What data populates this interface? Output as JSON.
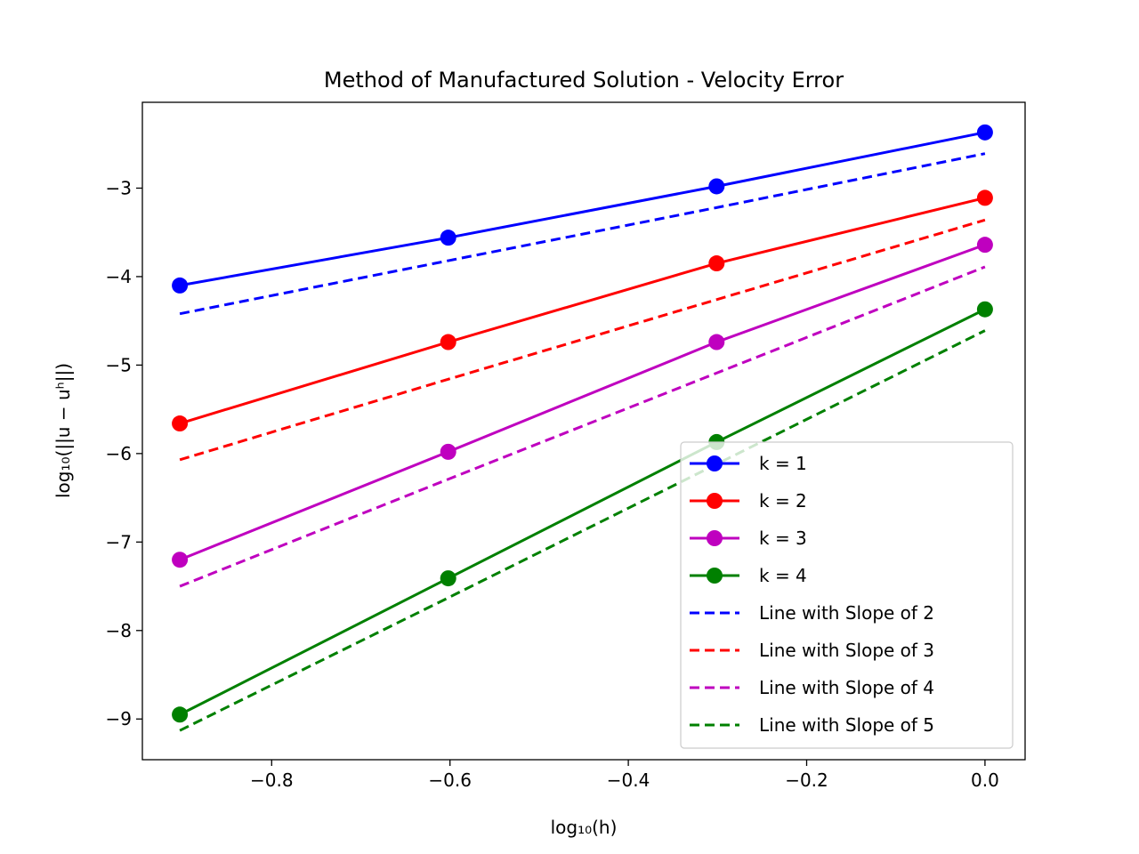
{
  "chart_data": {
    "type": "line",
    "title": "Method of Manufactured Solution - Velocity Error",
    "xlabel": "log₁₀(h)",
    "ylabel": "log₁₀(||u − uʰ||)",
    "xlim": [
      -0.945,
      0.045
    ],
    "ylim": [
      -9.46,
      -2.03
    ],
    "xticks": [
      -0.8,
      -0.6,
      -0.4,
      -0.2,
      0.0
    ],
    "xtick_labels": [
      "−0.8",
      "−0.6",
      "−0.4",
      "−0.2",
      "0.0"
    ],
    "yticks": [
      -9,
      -8,
      -7,
      -6,
      -5,
      -4,
      -3
    ],
    "ytick_labels": [
      "−9",
      "−8",
      "−7",
      "−6",
      "−5",
      "−4",
      "−3"
    ],
    "grid": false,
    "legend_position": "lower-right",
    "x": [
      -0.903,
      -0.602,
      -0.301,
      0.0
    ],
    "series": [
      {
        "name": "k = 1",
        "style": "solid-marker",
        "color": "#0000ff",
        "values": [
          -4.1,
          -3.56,
          -2.98,
          -2.37
        ]
      },
      {
        "name": "k = 2",
        "style": "solid-marker",
        "color": "#ff0000",
        "values": [
          -5.66,
          -4.74,
          -3.85,
          -3.11
        ]
      },
      {
        "name": "k = 3",
        "style": "solid-marker",
        "color": "#bf00bf",
        "values": [
          -7.2,
          -5.98,
          -4.74,
          -3.64
        ]
      },
      {
        "name": "k = 4",
        "style": "solid-marker",
        "color": "#008000",
        "values": [
          -8.95,
          -7.41,
          -5.87,
          -4.37
        ]
      },
      {
        "name": "Line with Slope of 2",
        "style": "dashed",
        "color": "#0000ff",
        "values": [
          -4.42,
          -3.82,
          -3.22,
          -2.61
        ]
      },
      {
        "name": "Line with Slope of 3",
        "style": "dashed",
        "color": "#ff0000",
        "values": [
          -6.07,
          -5.16,
          -4.26,
          -3.36
        ]
      },
      {
        "name": "Line with Slope of 4",
        "style": "dashed",
        "color": "#bf00bf",
        "values": [
          -7.5,
          -6.29,
          -5.09,
          -3.89
        ]
      },
      {
        "name": "Line with Slope of 5",
        "style": "dashed",
        "color": "#008000",
        "values": [
          -9.13,
          -7.63,
          -6.12,
          -4.61
        ]
      }
    ]
  }
}
